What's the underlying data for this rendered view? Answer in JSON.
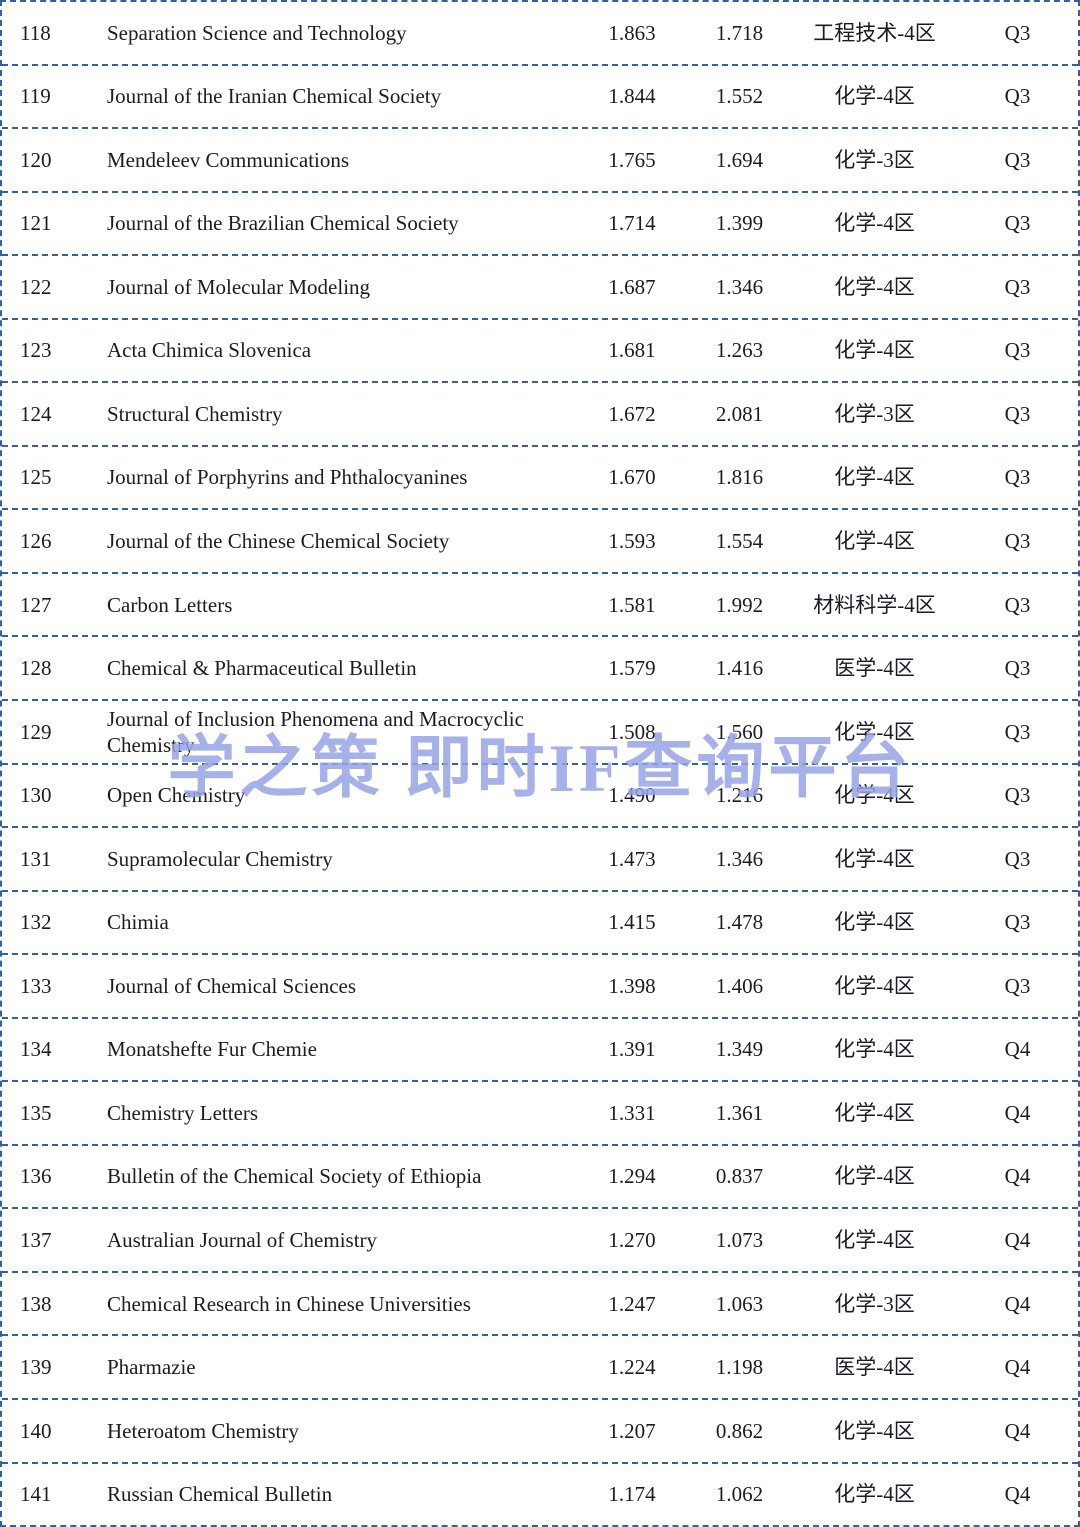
{
  "watermark": "学之策 即时IF查询平台",
  "colors": {
    "border": "#33619e",
    "text": "#1b1b26",
    "watermark": "#96a3e6"
  },
  "table": {
    "rows": [
      {
        "rank": "118",
        "journal": "Separation Science and Technology",
        "if1": "1.863",
        "if2": "1.718",
        "category": "工程技术-4区",
        "quartile": "Q3"
      },
      {
        "rank": "119",
        "journal": "Journal of the Iranian Chemical Society",
        "if1": "1.844",
        "if2": "1.552",
        "category": "化学-4区",
        "quartile": "Q3"
      },
      {
        "rank": "120",
        "journal": "Mendeleev Communications",
        "if1": "1.765",
        "if2": "1.694",
        "category": "化学-3区",
        "quartile": "Q3"
      },
      {
        "rank": "121",
        "journal": "Journal of the Brazilian Chemical Society",
        "if1": "1.714",
        "if2": "1.399",
        "category": "化学-4区",
        "quartile": "Q3"
      },
      {
        "rank": "122",
        "journal": "Journal of Molecular Modeling",
        "if1": "1.687",
        "if2": "1.346",
        "category": "化学-4区",
        "quartile": "Q3"
      },
      {
        "rank": "123",
        "journal": "Acta Chimica Slovenica",
        "if1": "1.681",
        "if2": "1.263",
        "category": "化学-4区",
        "quartile": "Q3"
      },
      {
        "rank": "124",
        "journal": "Structural Chemistry",
        "if1": "1.672",
        "if2": "2.081",
        "category": "化学-3区",
        "quartile": "Q3"
      },
      {
        "rank": "125",
        "journal": "Journal of Porphyrins and Phthalocyanines",
        "if1": "1.670",
        "if2": "1.816",
        "category": "化学-4区",
        "quartile": "Q3"
      },
      {
        "rank": "126",
        "journal": "Journal of the Chinese Chemical Society",
        "if1": "1.593",
        "if2": "1.554",
        "category": "化学-4区",
        "quartile": "Q3"
      },
      {
        "rank": "127",
        "journal": "Carbon Letters",
        "if1": "1.581",
        "if2": "1.992",
        "category": "材料科学-4区",
        "quartile": "Q3"
      },
      {
        "rank": "128",
        "journal": "Chemical & Pharmaceutical Bulletin",
        "if1": "1.579",
        "if2": "1.416",
        "category": "医学-4区",
        "quartile": "Q3"
      },
      {
        "rank": "129",
        "journal": "Journal of Inclusion Phenomena and Macrocyclic Chemistry",
        "if1": "1.508",
        "if2": "1.560",
        "category": "化学-4区",
        "quartile": "Q3"
      },
      {
        "rank": "130",
        "journal": "Open Chemistry",
        "if1": "1.490",
        "if2": "1.216",
        "category": "化学-4区",
        "quartile": "Q3"
      },
      {
        "rank": "131",
        "journal": "Supramolecular Chemistry",
        "if1": "1.473",
        "if2": "1.346",
        "category": "化学-4区",
        "quartile": "Q3"
      },
      {
        "rank": "132",
        "journal": "Chimia",
        "if1": "1.415",
        "if2": "1.478",
        "category": "化学-4区",
        "quartile": "Q3"
      },
      {
        "rank": "133",
        "journal": "Journal of Chemical Sciences",
        "if1": "1.398",
        "if2": "1.406",
        "category": "化学-4区",
        "quartile": "Q3"
      },
      {
        "rank": "134",
        "journal": "Monatshefte Fur Chemie",
        "if1": "1.391",
        "if2": "1.349",
        "category": "化学-4区",
        "quartile": "Q4"
      },
      {
        "rank": "135",
        "journal": "Chemistry Letters",
        "if1": "1.331",
        "if2": "1.361",
        "category": "化学-4区",
        "quartile": "Q4"
      },
      {
        "rank": "136",
        "journal": "Bulletin of the Chemical Society of Ethiopia",
        "if1": "1.294",
        "if2": "0.837",
        "category": "化学-4区",
        "quartile": "Q4"
      },
      {
        "rank": "137",
        "journal": "Australian Journal of Chemistry",
        "if1": "1.270",
        "if2": "1.073",
        "category": "化学-4区",
        "quartile": "Q4"
      },
      {
        "rank": "138",
        "journal": "Chemical Research in Chinese Universities",
        "if1": "1.247",
        "if2": "1.063",
        "category": "化学-3区",
        "quartile": "Q4"
      },
      {
        "rank": "139",
        "journal": "Pharmazie",
        "if1": "1.224",
        "if2": "1.198",
        "category": "医学-4区",
        "quartile": "Q4"
      },
      {
        "rank": "140",
        "journal": "Heteroatom Chemistry",
        "if1": "1.207",
        "if2": "0.862",
        "category": "化学-4区",
        "quartile": "Q4"
      },
      {
        "rank": "141",
        "journal": "Russian Chemical Bulletin",
        "if1": "1.174",
        "if2": "1.062",
        "category": "化学-4区",
        "quartile": "Q4"
      }
    ]
  }
}
